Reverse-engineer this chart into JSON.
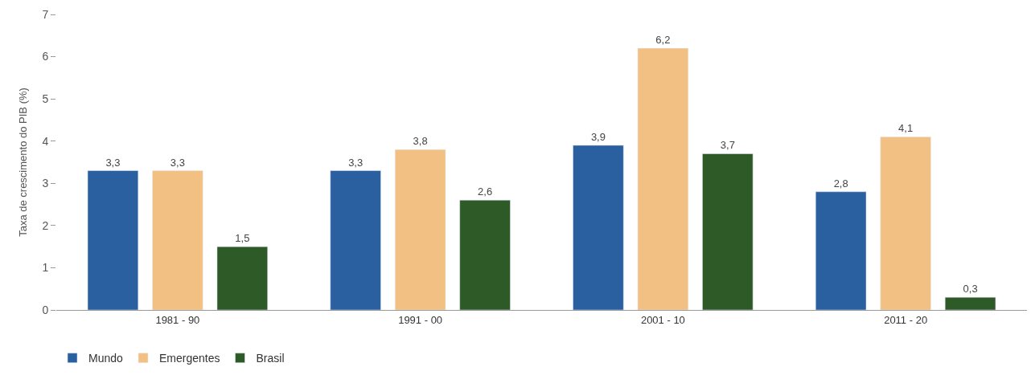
{
  "chart_data": {
    "type": "bar",
    "ylabel": "Taxa de crescimento do PIB (%)",
    "categories": [
      "1981 - 90",
      "1991 - 00",
      "2001 - 10",
      "2011 - 20"
    ],
    "series": [
      {
        "name": "Mundo",
        "color": "#2a5fa0",
        "values": [
          3.3,
          3.3,
          3.9,
          2.8
        ],
        "value_labels": [
          "3,3",
          "3,3",
          "3,9",
          "2,8"
        ]
      },
      {
        "name": "Emergentes",
        "color": "#f3c083",
        "values": [
          3.3,
          3.8,
          6.2,
          4.1
        ],
        "value_labels": [
          "3,3",
          "3,8",
          "6,2",
          "4,1"
        ]
      },
      {
        "name": "Brasil",
        "color": "#2d5a27",
        "values": [
          1.5,
          2.6,
          3.7,
          0.3
        ],
        "value_labels": [
          "1,5",
          "2,6",
          "3,7",
          "0,3"
        ]
      }
    ],
    "ylim": [
      0,
      7
    ],
    "yticks": [
      0,
      1,
      2,
      3,
      4,
      5,
      6,
      7
    ],
    "legend": "bottom left"
  }
}
